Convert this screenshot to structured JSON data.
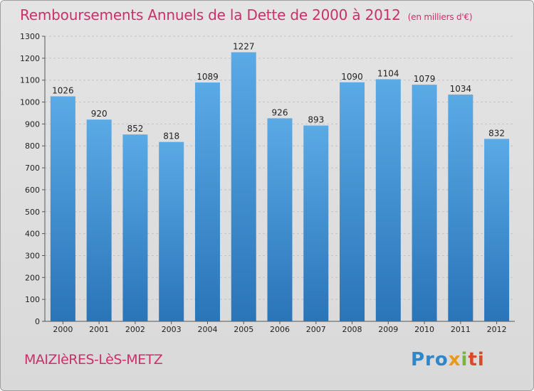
{
  "chart_data": {
    "type": "bar",
    "title": "Remboursements Annuels de la Dette de 2000 à 2012",
    "subtitle": "(en milliers d'€)",
    "categories": [
      "2000",
      "2001",
      "2002",
      "2003",
      "2004",
      "2005",
      "2006",
      "2007",
      "2008",
      "2009",
      "2010",
      "2011",
      "2012"
    ],
    "values": [
      1026,
      920,
      852,
      818,
      1089,
      1227,
      926,
      893,
      1090,
      1104,
      1079,
      1034,
      832
    ],
    "ylim": [
      0,
      1300
    ],
    "yticks": [
      0,
      100,
      200,
      300,
      400,
      500,
      600,
      700,
      800,
      900,
      1000,
      1100,
      1200,
      1300
    ],
    "grid": true,
    "bar_color": "#4f9fe0",
    "bar_color_dark": "#2a78bd"
  },
  "footer": {
    "city": "MAIZIèRES-LèS-METZ",
    "logo_parts": [
      "Pro",
      "x",
      "i",
      "ti"
    ]
  }
}
